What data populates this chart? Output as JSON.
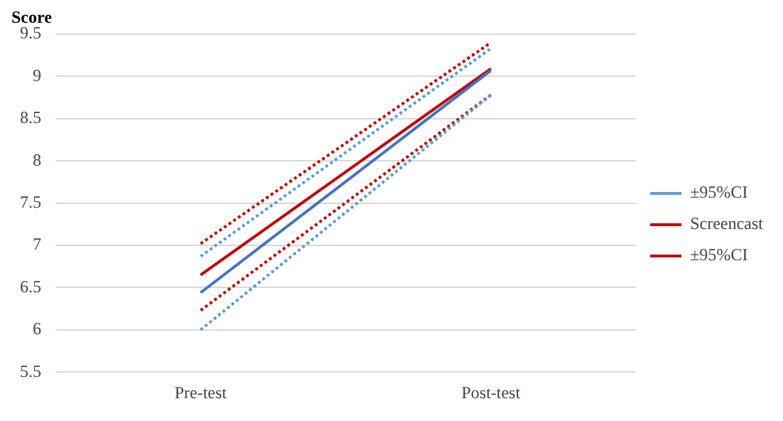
{
  "chart_data": {
    "type": "line",
    "ylabel": "Score",
    "categories": [
      "Pre-test",
      "Post-test"
    ],
    "series": [
      {
        "color": "#4472c4",
        "values": [
          6.44,
          9.07
        ],
        "line_style": "solid"
      },
      {
        "name": "±95%CI",
        "color": "#5b9bd5",
        "values": [
          6.87,
          9.33
        ],
        "line_style": "dotted"
      },
      {
        "color": "#5b9bd5",
        "values": [
          6.0,
          8.78
        ],
        "line_style": "dotted"
      },
      {
        "name": "Screencast",
        "color": "#c00000",
        "values": [
          6.65,
          9.09
        ],
        "line_style": "solid"
      },
      {
        "name": "±95%CI",
        "color": "#c00000",
        "values": [
          7.02,
          9.4
        ],
        "line_style": "dotted"
      },
      {
        "color": "#c00000",
        "values": [
          6.23,
          8.78
        ],
        "line_style": "dotted"
      }
    ],
    "ylim": [
      5.5,
      9.5
    ],
    "yticks": [
      5.5,
      6,
      6.5,
      7,
      7.5,
      8,
      8.5,
      9,
      9.5
    ],
    "grid": "y",
    "legend": "right",
    "marker": "none"
  }
}
